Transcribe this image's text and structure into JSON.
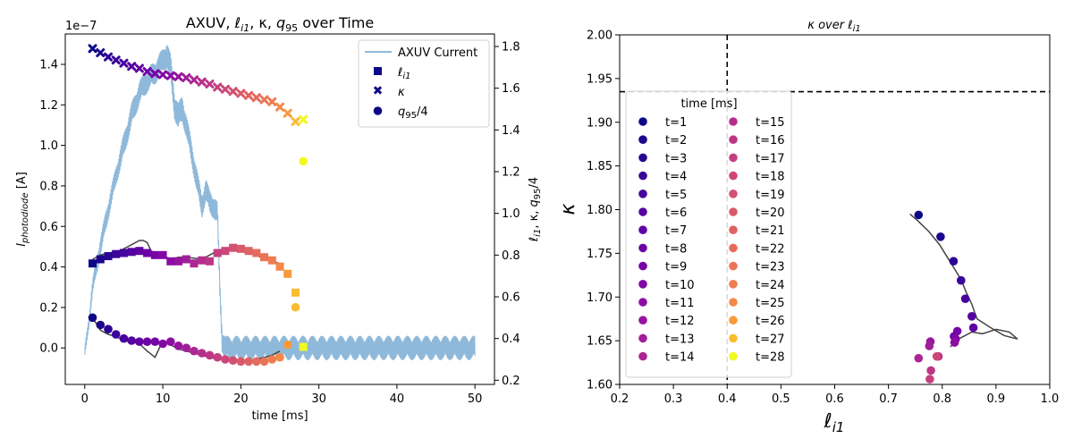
{
  "chart_data": [
    {
      "type": "line",
      "title": "AXUV, ℓi1, κ, q95 over Time",
      "title_parts": {
        "a": "AXUV, ",
        "b": "ℓ",
        "b_sub": "i1",
        "c": ", κ, ",
        "d": "q",
        "d_sub": "95",
        "e": " over Time"
      },
      "xlabel": "time [ms]",
      "ylabel": {
        "base": "I",
        "sub": "photodiode",
        "rest": " [A]"
      },
      "y2label": {
        "l": "ℓ",
        "l_sub": "i1",
        "m": ", κ, ",
        "q": "q",
        "q_sub": "95",
        "r": "/4"
      },
      "offset_text": "1e−7",
      "xlim": [
        -2.5,
        52.5
      ],
      "ylim": [
        -0.18,
        1.55
      ],
      "y2lim": [
        0.18,
        1.86
      ],
      "xticks": [
        0,
        10,
        20,
        30,
        40,
        50
      ],
      "yticks": [
        0.0,
        0.2,
        0.4,
        0.6,
        0.8,
        1.0,
        1.2,
        1.4
      ],
      "y2ticks": [
        0.2,
        0.4,
        0.6,
        0.8,
        1.0,
        1.2,
        1.4,
        1.6,
        1.8
      ],
      "legend": {
        "placement": "upper right",
        "entries": [
          {
            "label": "AXUV Current",
            "marker": "line"
          },
          {
            "label": "ℓ",
            "sub": "i1",
            "marker": "square"
          },
          {
            "label": "κ",
            "marker": "cross"
          },
          {
            "label": "q",
            "sub": "95",
            "rest": "/4",
            "marker": "circle"
          }
        ]
      },
      "axuv_current": {
        "name": "AXUV Current",
        "color": "#8fb9da",
        "x": [
          0,
          0.5,
          1,
          2,
          3,
          4,
          5,
          6,
          7,
          8,
          9,
          10,
          10.5,
          11,
          11.5,
          12,
          12.5,
          13,
          14,
          15,
          15.5,
          16,
          16.5,
          17,
          17.3,
          17.6,
          18,
          19,
          20,
          22,
          25,
          30,
          35,
          40,
          45,
          50
        ],
        "y": [
          -0.02,
          0.12,
          0.3,
          0.5,
          0.68,
          0.85,
          1.0,
          1.15,
          1.26,
          1.32,
          1.36,
          1.42,
          1.45,
          1.38,
          1.2,
          1.14,
          1.18,
          1.1,
          0.9,
          0.7,
          0.78,
          0.72,
          0.7,
          0.66,
          0.3,
          0.04,
          0.0,
          0.0,
          0.0,
          0.0,
          0.0,
          0.0,
          0.0,
          0.0,
          0.0,
          0.0
        ],
        "noise": [
          0.03,
          0.03,
          0.04,
          0.05,
          0.05,
          0.05,
          0.06,
          0.06,
          0.06,
          0.06,
          0.06,
          0.06,
          0.07,
          0.07,
          0.07,
          0.07,
          0.07,
          0.06,
          0.06,
          0.06,
          0.06,
          0.06,
          0.06,
          0.06,
          0.05,
          0.06,
          0.06,
          0.06,
          0.06,
          0.06,
          0.06,
          0.06,
          0.06,
          0.06,
          0.06,
          0.06
        ]
      },
      "li1_trace": {
        "color": "#444444",
        "x": [
          1,
          2,
          3,
          4,
          5,
          6,
          7,
          7.5,
          8,
          8.5,
          9,
          10,
          11,
          12,
          13,
          14,
          15,
          16,
          17,
          18,
          19,
          20,
          21,
          22,
          23,
          24,
          25
        ],
        "y2": [
          0.78,
          0.8,
          0.81,
          0.815,
          0.83,
          0.85,
          0.87,
          0.87,
          0.86,
          0.82,
          0.81,
          0.8,
          0.78,
          0.79,
          0.79,
          0.785,
          0.78,
          0.8,
          0.82,
          0.83,
          0.83,
          0.82,
          0.81,
          0.8,
          0.78,
          0.77,
          0.76
        ]
      },
      "q95_trace": {
        "color": "#444444",
        "x": [
          1,
          2,
          3,
          4,
          5,
          6,
          7,
          8,
          9,
          10,
          11,
          12,
          13,
          14,
          15,
          16,
          17,
          18,
          19,
          20,
          21,
          22,
          23,
          24,
          25
        ],
        "y2": [
          0.5,
          0.44,
          0.42,
          0.41,
          0.39,
          0.385,
          0.375,
          0.34,
          0.31,
          0.39,
          0.37,
          0.35,
          0.34,
          0.33,
          0.32,
          0.31,
          0.3,
          0.3,
          0.29,
          0.295,
          0.29,
          0.3,
          0.31,
          0.32,
          0.34
        ]
      },
      "series": [
        {
          "name": "ℓi1",
          "marker": "square",
          "x": [
            1,
            2,
            3,
            4,
            5,
            6,
            7,
            8,
            9,
            10,
            11,
            12,
            13,
            14,
            15,
            16,
            17,
            18,
            19,
            20,
            21,
            22,
            23,
            24,
            25,
            26,
            27,
            28
          ],
          "y2": [
            0.76,
            0.78,
            0.795,
            0.805,
            0.81,
            0.815,
            0.82,
            0.81,
            0.8,
            0.8,
            0.77,
            0.77,
            0.78,
            0.76,
            0.775,
            0.77,
            0.81,
            0.82,
            0.835,
            0.83,
            0.82,
            0.81,
            0.79,
            0.775,
            0.745,
            0.71,
            0.62,
            0.36
          ]
        },
        {
          "name": "κ",
          "marker": "cross",
          "x": [
            1,
            2,
            3,
            4,
            5,
            6,
            7,
            8,
            9,
            10,
            11,
            12,
            13,
            14,
            15,
            16,
            17,
            18,
            19,
            20,
            21,
            22,
            23,
            24,
            25,
            26,
            27,
            28
          ],
          "y2": [
            1.79,
            1.77,
            1.75,
            1.735,
            1.72,
            1.705,
            1.695,
            1.68,
            1.67,
            1.665,
            1.66,
            1.655,
            1.65,
            1.64,
            1.63,
            1.62,
            1.605,
            1.595,
            1.585,
            1.575,
            1.565,
            1.555,
            1.545,
            1.535,
            1.51,
            1.48,
            1.44,
            1.45
          ]
        },
        {
          "name": "q95/4",
          "marker": "circle",
          "x": [
            1,
            2,
            3,
            4,
            5,
            6,
            7,
            8,
            9,
            10,
            11,
            12,
            13,
            14,
            15,
            16,
            17,
            18,
            19,
            20,
            21,
            22,
            23,
            24,
            25,
            26,
            27,
            28
          ],
          "y2": [
            0.5,
            0.465,
            0.445,
            0.42,
            0.4,
            0.39,
            0.385,
            0.385,
            0.385,
            0.375,
            0.385,
            0.365,
            0.355,
            0.34,
            0.33,
            0.32,
            0.31,
            0.3,
            0.295,
            0.29,
            0.29,
            0.29,
            0.29,
            0.3,
            0.31,
            0.37,
            0.55,
            1.25
          ]
        }
      ],
      "marker_colormap": "plasma"
    },
    {
      "type": "scatter",
      "title": "κ over ℓi1",
      "title_parts": {
        "a": "κ over ",
        "b": "ℓ",
        "b_sub": "i1"
      },
      "xlabel": {
        "base": "ℓ",
        "sub": "i1"
      },
      "ylabel": "κ",
      "xlim": [
        0.2,
        1.0
      ],
      "ylim": [
        1.6,
        2.0
      ],
      "xticks": [
        0.2,
        0.3,
        0.4,
        0.5,
        0.6,
        0.7,
        0.8,
        0.9,
        1.0
      ],
      "yticks": [
        1.6,
        1.65,
        1.7,
        1.75,
        1.8,
        1.85,
        1.9,
        1.95,
        2.0
      ],
      "vline_x": 0.4,
      "hline_y": 1.935,
      "trace": {
        "color": "#444444",
        "x": [
          0.74,
          0.755,
          0.775,
          0.795,
          0.81,
          0.82,
          0.835,
          0.845,
          0.855,
          0.86,
          0.865,
          0.89,
          0.915,
          0.94,
          0.925,
          0.9,
          0.875,
          0.855,
          0.84,
          0.83,
          0.82,
          0.815
        ],
        "y": [
          1.795,
          1.787,
          1.775,
          1.76,
          1.745,
          1.735,
          1.72,
          1.705,
          1.692,
          1.683,
          1.675,
          1.665,
          1.656,
          1.652,
          1.66,
          1.663,
          1.658,
          1.66,
          1.655,
          1.652,
          1.646,
          1.643
        ]
      },
      "points": {
        "x": [
          0.756,
          0.797,
          0.821,
          0.835,
          0.843,
          0.855,
          0.858,
          0.822,
          0.828,
          0.825,
          0.823,
          0.778,
          0.776,
          0.756,
          0.793,
          0.779,
          0.777,
          0.79
        ],
        "y": [
          1.794,
          1.769,
          1.741,
          1.719,
          1.698,
          1.678,
          1.665,
          1.655,
          1.661,
          1.652,
          1.648,
          1.649,
          1.644,
          1.63,
          1.632,
          1.616,
          1.606,
          1.632
        ]
      },
      "legend": {
        "title": "time [ms]",
        "placement": "center-left",
        "entries": [
          "t=1",
          "t=2",
          "t=3",
          "t=4",
          "t=5",
          "t=6",
          "t=7",
          "t=8",
          "t=9",
          "t=10",
          "t=11",
          "t=12",
          "t=13",
          "t=14",
          "t=15",
          "t=16",
          "t=17",
          "t=18",
          "t=19",
          "t=20",
          "t=21",
          "t=22",
          "t=23",
          "t=24",
          "t=25",
          "t=26",
          "t=27",
          "t=28"
        ]
      },
      "marker_colormap": "plasma"
    }
  ]
}
